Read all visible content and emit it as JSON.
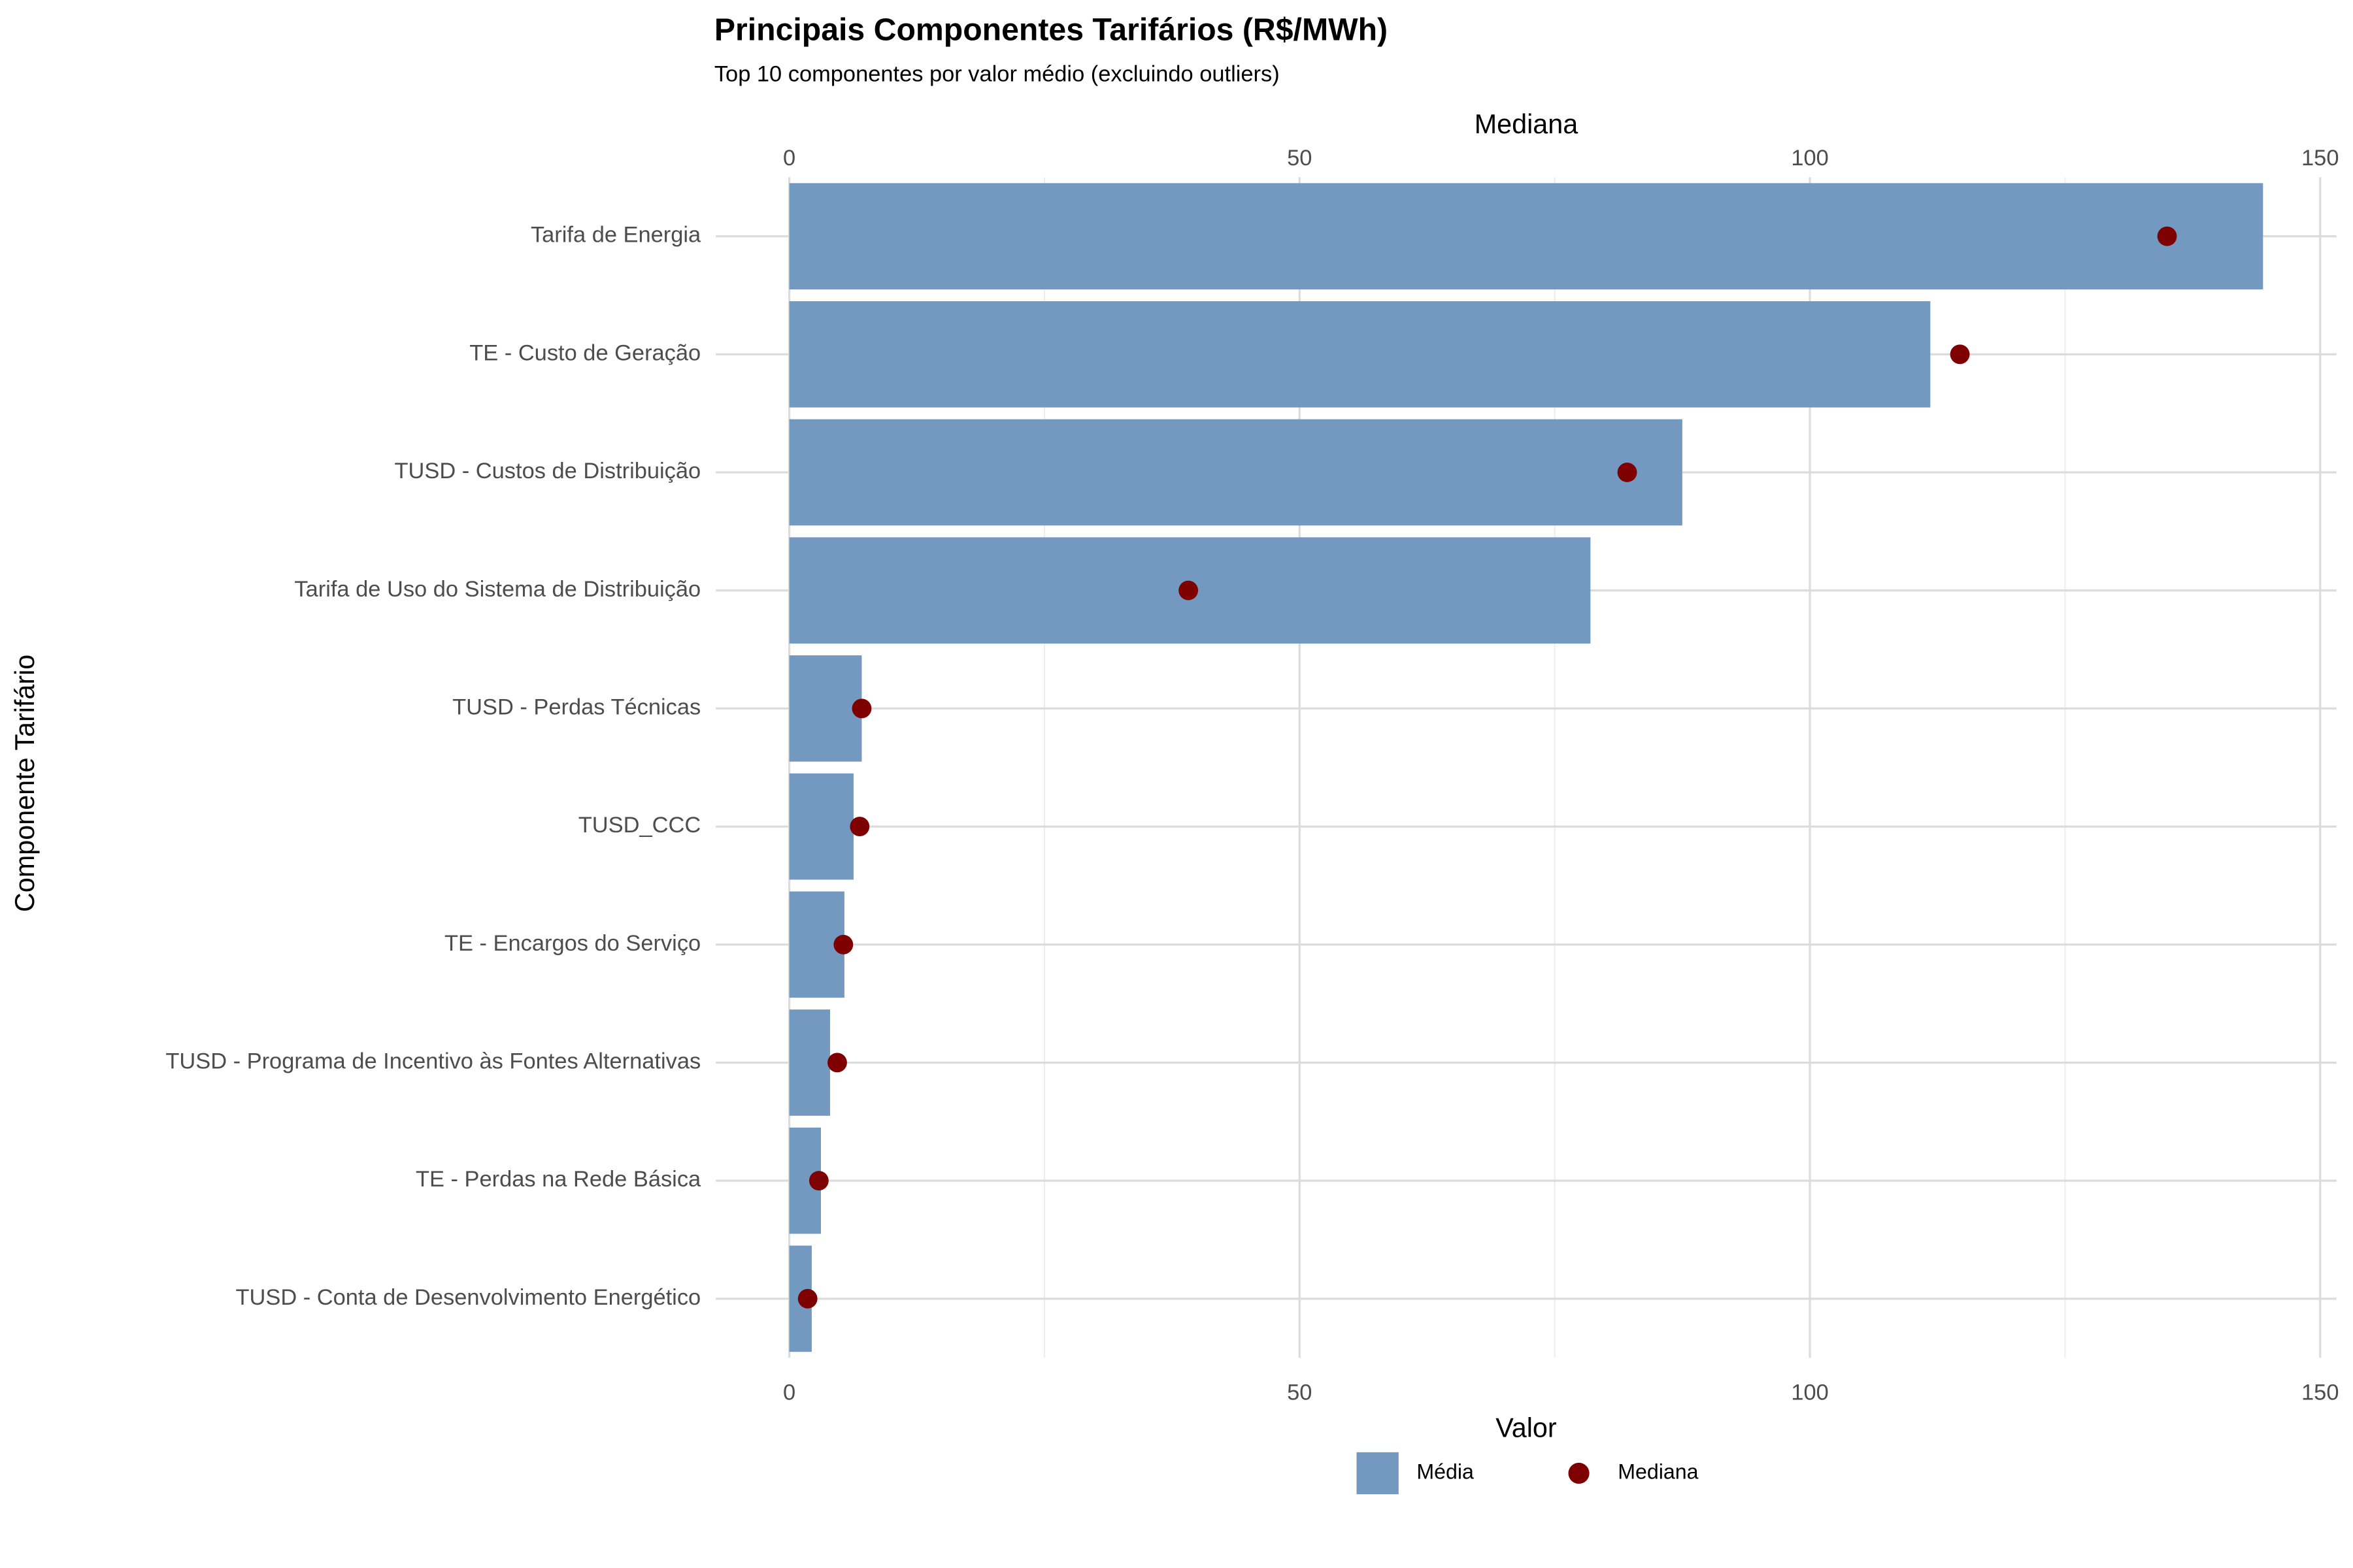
{
  "chart_data": {
    "type": "bar",
    "orientation": "horizontal",
    "title": "Principais Componentes Tarifários (R$/MWh)",
    "subtitle": "Top 10 componentes por valor médio (excluindo outliers)",
    "xlabel": "Valor",
    "x2label": "Mediana",
    "ylabel": "Componente Tarifário",
    "categories": [
      "Tarifa de Energia",
      "TE - Custo de Geração",
      "TUSD - Custos de Distribuição",
      "Tarifa de Uso do Sistema de Distribuição",
      "TUSD - Perdas Técnicas",
      "TUSD_CCC",
      "TE - Encargos do Serviço",
      "TUSD - Programa de Incentivo às Fontes Alternativas",
      "TE - Perdas na Rede Básica",
      "TUSD - Conta de Desenvolvimento Energético"
    ],
    "series": [
      {
        "name": "Média",
        "color": "#7399c0",
        "type": "bar",
        "values": [
          144.4,
          111.8,
          87.5,
          78.5,
          7.1,
          6.3,
          5.4,
          4.0,
          3.1,
          2.2
        ]
      },
      {
        "name": "Mediana",
        "color": "#7f0000",
        "type": "point",
        "axis": "x2",
        "values": [
          135.0,
          114.7,
          82.1,
          39.1,
          7.1,
          6.9,
          5.3,
          4.7,
          2.9,
          1.8
        ]
      }
    ],
    "xlim": [
      -7.2,
      151.6
    ],
    "xticks": [
      0,
      50,
      100,
      150
    ],
    "xminorticks": [
      25,
      75,
      125
    ],
    "x2lim": [
      -7.2,
      151.6
    ],
    "x2ticks": [
      0,
      50,
      100,
      150
    ],
    "grid": true,
    "legend": "bottom"
  }
}
